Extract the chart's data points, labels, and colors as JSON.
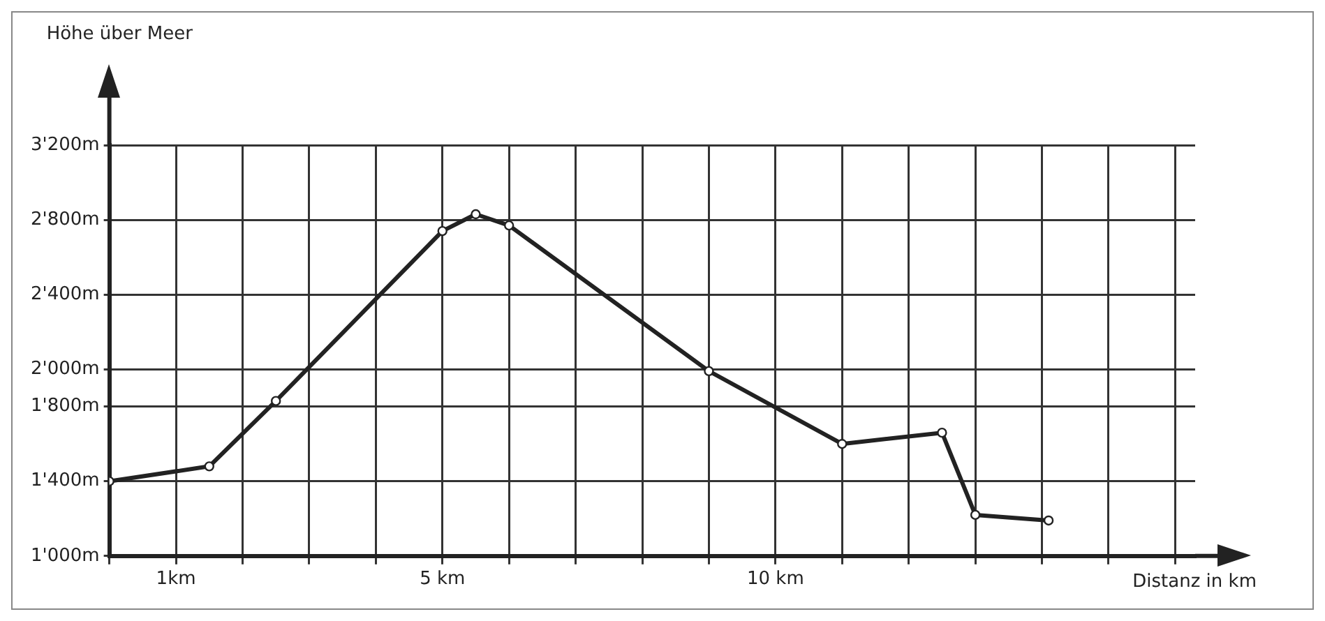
{
  "chart_data": {
    "type": "line",
    "xlabel": "Distanz in km",
    "ylabel": "Höhe über Meer",
    "x": [
      0,
      1.5,
      2.5,
      5.0,
      5.5,
      6.0,
      9.0,
      11.0,
      12.5,
      13.0,
      14.1
    ],
    "series": [
      {
        "color": "#222222",
        "values": [
          1400,
          1480,
          1830,
          2740,
          2830,
          2770,
          1990,
          1600,
          1660,
          1220,
          1190
        ]
      }
    ],
    "xlim": [
      0,
      16.3
    ],
    "xticks": [
      {
        "value": 0,
        "label": null
      },
      {
        "value": 1,
        "label": "1km"
      },
      {
        "value": 2,
        "label": null
      },
      {
        "value": 3,
        "label": null
      },
      {
        "value": 4,
        "label": null
      },
      {
        "value": 5,
        "label": "5 km"
      },
      {
        "value": 6,
        "label": null
      },
      {
        "value": 7,
        "label": null
      },
      {
        "value": 8,
        "label": null
      },
      {
        "value": 9,
        "label": null
      },
      {
        "value": 10,
        "label": "10 km"
      },
      {
        "value": 11,
        "label": null
      },
      {
        "value": 12,
        "label": null
      },
      {
        "value": 13,
        "label": null
      },
      {
        "value": 14,
        "label": null
      },
      {
        "value": 15,
        "label": null
      },
      {
        "value": 16,
        "label": null
      }
    ],
    "ylim": [
      1000,
      3200
    ],
    "yticks": [
      {
        "value": 1000,
        "label": "1'000m"
      },
      {
        "value": 1400,
        "label": "1'400m"
      },
      {
        "value": 1800,
        "label": "1'800m"
      },
      {
        "value": 2000,
        "label": "2'000m"
      },
      {
        "value": 2400,
        "label": "2'400m"
      },
      {
        "value": 2800,
        "label": "2'800m"
      },
      {
        "value": 3200,
        "label": "3'200m"
      }
    ],
    "grid": true,
    "legend": false,
    "marker": "circle",
    "line_style": "solid"
  }
}
